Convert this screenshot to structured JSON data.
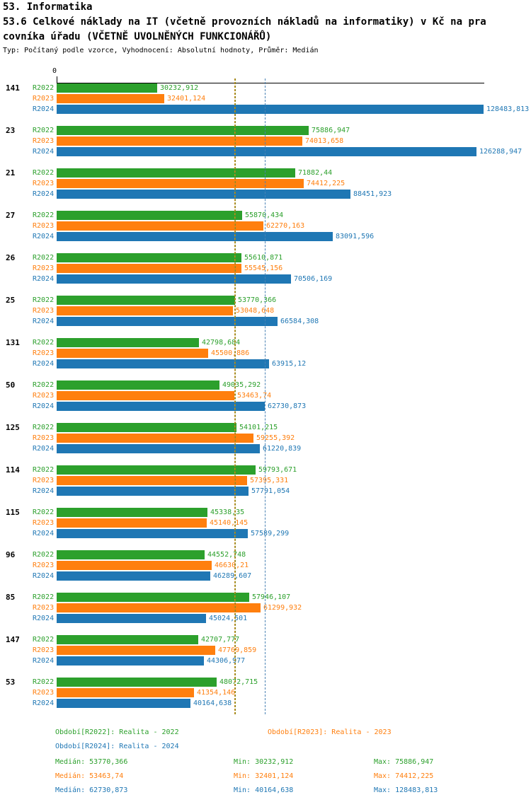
{
  "header": {
    "title": "53. Informatika",
    "subtitle_line1": "53.6 Celkové náklady na IT (včetně provozních nákladů na informatiky) v Kč na pra",
    "subtitle_line2": "covníka úřadu (VČETNĚ UVOLNĚNÝCH FUNKCIONÁŘŮ)",
    "meta": "Typ: Počítaný podle vzorce, Vyhodnocení: Absolutní hodnoty, Průměr: Medián"
  },
  "axis": {
    "zero_label": "0"
  },
  "colors": {
    "r2022": "#2ca02c",
    "r2023": "#ff7f0e",
    "r2024": "#1f77b4",
    "median_r2022": "#8c8c1e",
    "median_r2023": "#c28a1e",
    "median_r2024": "#4a82b4",
    "axis": "#000000"
  },
  "chart_data": {
    "type": "bar",
    "orientation": "horizontal",
    "title": "53.6 Celkové náklady na IT (včetně provozních nákladů na informatiky) v Kč na pracovníka úřadu (VČETNĚ UVOLNĚNÝCH FUNKCIONÁŘŮ)",
    "series": [
      "R2022",
      "R2023",
      "R2024"
    ],
    "xlim": [
      0,
      128483.813
    ],
    "medians": {
      "R2022": 53770.366,
      "R2023": 53463.74,
      "R2024": 62730.873
    },
    "groups": [
      {
        "id": "141",
        "values": [
          30232.912,
          32401.124,
          128483.813
        ],
        "labels": [
          "30232,912",
          "32401,124",
          "128483,813"
        ]
      },
      {
        "id": "23",
        "values": [
          75886.947,
          74013.658,
          126288.947
        ],
        "labels": [
          "75886,947",
          "74013,658",
          "126288,947"
        ]
      },
      {
        "id": "21",
        "values": [
          71882.44,
          74412.225,
          88451.923
        ],
        "labels": [
          "71882,44",
          "74412,225",
          "88451,923"
        ]
      },
      {
        "id": "27",
        "values": [
          55870.434,
          62270.163,
          83091.596
        ],
        "labels": [
          "55870,434",
          "62270,163",
          "83091,596"
        ]
      },
      {
        "id": "26",
        "values": [
          55610.871,
          55545.156,
          70506.169
        ],
        "labels": [
          "55610,871",
          "55545,156",
          "70506,169"
        ]
      },
      {
        "id": "25",
        "values": [
          53770.366,
          53048.648,
          66584.308
        ],
        "labels": [
          "53770,366",
          "53048,648",
          "66584,308"
        ]
      },
      {
        "id": "131",
        "values": [
          42798.684,
          45500.886,
          63915.12
        ],
        "labels": [
          "42798,684",
          "45500,886",
          "63915,12"
        ]
      },
      {
        "id": "50",
        "values": [
          49035.292,
          53463.74,
          62730.873
        ],
        "labels": [
          "49035,292",
          "53463,74",
          "62730,873"
        ]
      },
      {
        "id": "125",
        "values": [
          54101.215,
          59255.392,
          61220.839
        ],
        "labels": [
          "54101,215",
          "59255,392",
          "61220,839"
        ]
      },
      {
        "id": "114",
        "values": [
          59793.671,
          57395.331,
          57791.054
        ],
        "labels": [
          "59793,671",
          "57395,331",
          "57791,054"
        ]
      },
      {
        "id": "115",
        "values": [
          45338.35,
          45140.145,
          57589.299
        ],
        "labels": [
          "45338,35",
          "45140,145",
          "57589,299"
        ]
      },
      {
        "id": "96",
        "values": [
          44552.748,
          46630.21,
          46289.607
        ],
        "labels": [
          "44552,748",
          "46630,21",
          "46289,607"
        ]
      },
      {
        "id": "85",
        "values": [
          57946.107,
          61299.932,
          45024.501
        ],
        "labels": [
          "57946,107",
          "61299,932",
          "45024,501"
        ]
      },
      {
        "id": "147",
        "values": [
          42707.777,
          47769.859,
          44306.977
        ],
        "labels": [
          "42707,777",
          "47769,859",
          "44306,977"
        ]
      },
      {
        "id": "53",
        "values": [
          48072.715,
          41354.146,
          40164.638
        ],
        "labels": [
          "48072,715",
          "41354,146",
          "40164,638"
        ]
      }
    ]
  },
  "legend": {
    "items": [
      {
        "label": "Období[R2022]: Realita - 2022",
        "series": "r2022"
      },
      {
        "label": "Období[R2023]: Realita - 2023",
        "series": "r2023"
      },
      {
        "label": "Období[R2024]: Realita - 2024",
        "series": "r2024"
      }
    ]
  },
  "stats": {
    "rows": [
      {
        "series": "r2022",
        "median": "Medián: 53770,366",
        "min": "Min: 30232,912",
        "max": "Max: 75886,947"
      },
      {
        "series": "r2023",
        "median": "Medián: 53463,74",
        "min": "Min: 32401,124",
        "max": "Max: 74412,225"
      },
      {
        "series": "r2024",
        "median": "Medián: 62730,873",
        "min": "Min: 40164,638",
        "max": "Max: 128483,813"
      }
    ]
  }
}
